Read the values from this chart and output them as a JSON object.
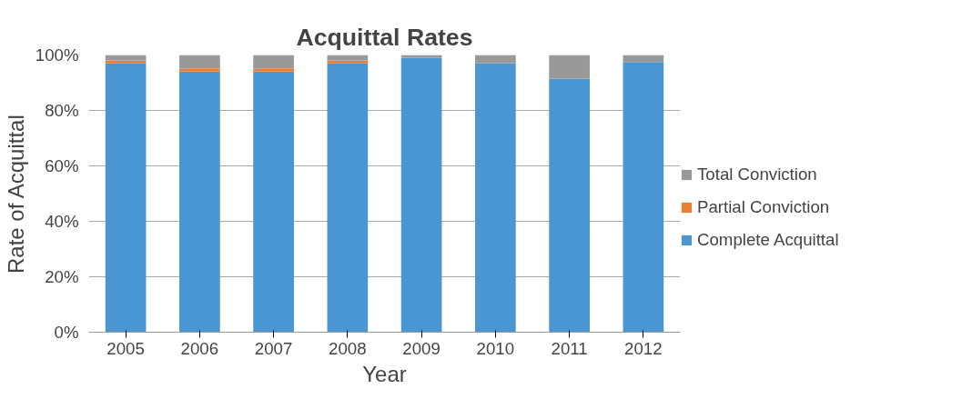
{
  "chart_data": {
    "type": "bar",
    "stacked": true,
    "title": "Acquittal Rates",
    "xlabel": "Year",
    "ylabel": "Rate of Acquittal",
    "categories": [
      "2005",
      "2006",
      "2007",
      "2008",
      "2009",
      "2010",
      "2011",
      "2012"
    ],
    "series": [
      {
        "name": "Complete Acquittal",
        "color": "#4a96d2",
        "values": [
          97,
          94,
          94,
          97,
          99,
          97,
          91.5,
          97.5
        ]
      },
      {
        "name": "Partial Conviction",
        "color": "#ed7d31",
        "values": [
          1,
          1,
          1,
          1,
          0,
          0,
          0,
          0
        ]
      },
      {
        "name": "Total Conviction",
        "color": "#999999",
        "values": [
          2,
          5,
          5,
          2,
          1,
          3,
          8.5,
          2.5
        ]
      }
    ],
    "ylim": [
      0,
      100
    ],
    "yticks": [
      {
        "value": 0,
        "label": "0%"
      },
      {
        "value": 20,
        "label": "20%"
      },
      {
        "value": 40,
        "label": "40%"
      },
      {
        "value": 60,
        "label": "60%"
      },
      {
        "value": 80,
        "label": "80%"
      },
      {
        "value": 100,
        "label": "100%"
      }
    ],
    "grid": "y",
    "legend": "right"
  }
}
